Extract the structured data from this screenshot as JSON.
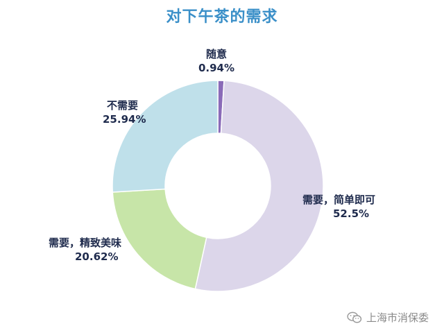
{
  "chart_data": {
    "type": "pie",
    "title": "对下午茶的需求",
    "slices": [
      {
        "label": "需要，简单即可",
        "value": 52.5,
        "value_label": "52.5%",
        "color": "#dcd6ea"
      },
      {
        "label": "需要，精致美味",
        "value": 20.62,
        "value_label": "20.62%",
        "color": "#c7e5a8"
      },
      {
        "label": "不需要",
        "value": 25.94,
        "value_label": "25.94%",
        "color": "#bfe0ea"
      },
      {
        "label": "随意",
        "value": 0.94,
        "value_label": "0.94%",
        "color": "#8a6bb8"
      }
    ]
  },
  "colors": {
    "title": "#3a8fc8",
    "label": "#1f2b4d",
    "watermark": "#8a8a8a"
  },
  "watermark": {
    "icon": "wechat-icon",
    "text": "上海市消保委"
  }
}
